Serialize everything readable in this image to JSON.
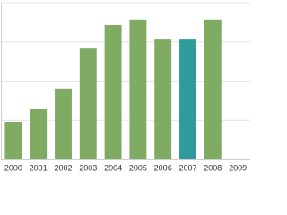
{
  "chart_data": {
    "type": "bar",
    "categories": [
      "2000",
      "2001",
      "2002",
      "2003",
      "2004",
      "2005",
      "2006",
      "2007",
      "2008",
      "2009"
    ],
    "values": [
      0.96,
      1.28,
      1.81,
      2.83,
      3.43,
      3.57,
      3.06,
      3.06,
      3.57,
      null
    ],
    "colors": [
      "#7fab63",
      "#7fab63",
      "#7fab63",
      "#7fab63",
      "#7fab63",
      "#7fab63",
      "#7fab63",
      "#2e9c9a",
      "#7fab63",
      "#7fab63"
    ],
    "ylim": [
      0,
      4
    ],
    "yticks": [
      0,
      1,
      2,
      3,
      4
    ],
    "grid": true
  }
}
